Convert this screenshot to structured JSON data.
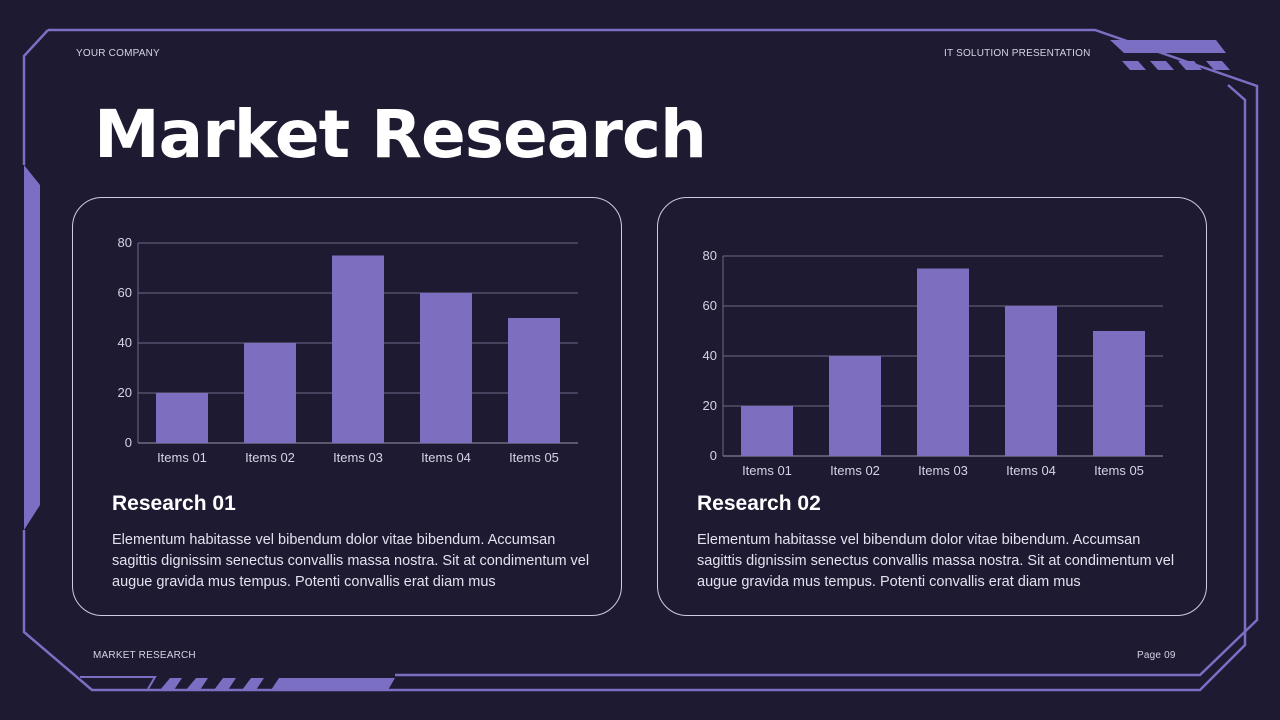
{
  "header": {
    "company": "YOUR COMPANY",
    "presentation": "IT SOLUTION PRESENTATION"
  },
  "title": "Market Research",
  "footer": {
    "section": "MARKET RESEARCH",
    "page": "Page 09"
  },
  "colors": {
    "background": "#1e1a32",
    "accent": "#7b6fc4",
    "bar": "#7d6ec0"
  },
  "cards": [
    {
      "heading": "Research 01",
      "body": "Elementum habitasse vel bibendum dolor vitae bibendum. Accumsan sagittis dignissim senectus convallis massa nostra. Sit at condimentum vel augue gravida mus tempus. Potenti convallis erat diam mus"
    },
    {
      "heading": "Research 02",
      "body": "Elementum habitasse vel bibendum dolor vitae bibendum. Accumsan sagittis dignissim senectus convallis massa nostra. Sit at condimentum vel augue gravida mus tempus. Potenti convallis erat diam mus"
    }
  ],
  "chart_data": [
    {
      "type": "bar",
      "categories": [
        "Items 01",
        "Items 02",
        "Items 03",
        "Items 04",
        "Items 05"
      ],
      "values": [
        20,
        40,
        75,
        60,
        50
      ],
      "ylim": [
        0,
        80
      ],
      "yticks": [
        0,
        20,
        40,
        60,
        80
      ],
      "grid": true
    },
    {
      "type": "bar",
      "categories": [
        "Items 01",
        "Items 02",
        "Items 03",
        "Items 04",
        "Items 05"
      ],
      "values": [
        20,
        40,
        75,
        60,
        50
      ],
      "ylim": [
        0,
        80
      ],
      "yticks": [
        0,
        20,
        40,
        60,
        80
      ],
      "grid": true
    }
  ]
}
